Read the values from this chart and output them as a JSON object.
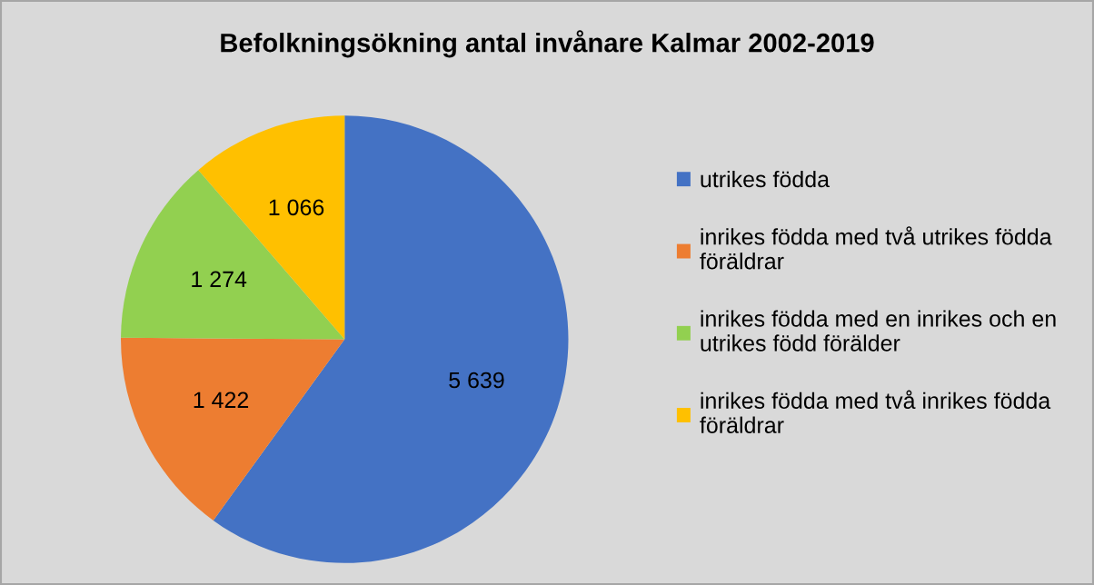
{
  "chart_data": {
    "type": "pie",
    "title": "Befolkningsökning antal invånare Kalmar 2002-2019",
    "categories": [
      "utrikes födda",
      "inrikes födda med två utrikes födda föräldrar",
      "inrikes födda med en inrikes och en utrikes född förälder",
      "inrikes födda med två inrikes födda föräldrar"
    ],
    "values": [
      5639,
      1422,
      1274,
      1066
    ],
    "value_labels": [
      "5 639",
      "1 422",
      "1 274",
      "1 066"
    ],
    "colors": [
      "#4472c4",
      "#ed7d31",
      "#92d050",
      "#ffc000"
    ],
    "legend": "right"
  }
}
